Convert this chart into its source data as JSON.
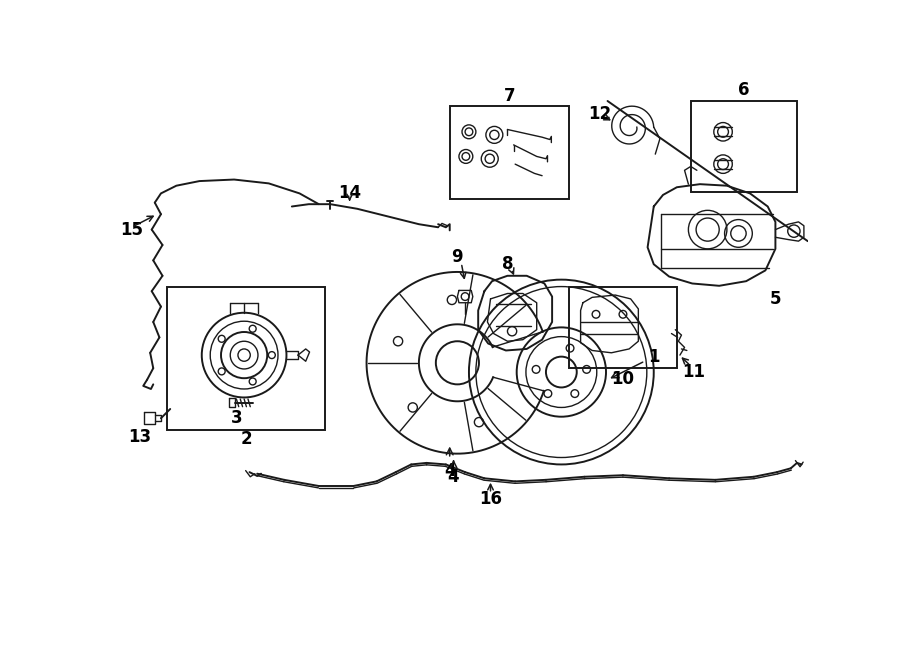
{
  "background_color": "#ffffff",
  "line_color": "#1a1a1a",
  "text_color": "#000000",
  "fig_width": 9.0,
  "fig_height": 6.62,
  "dpi": 100
}
